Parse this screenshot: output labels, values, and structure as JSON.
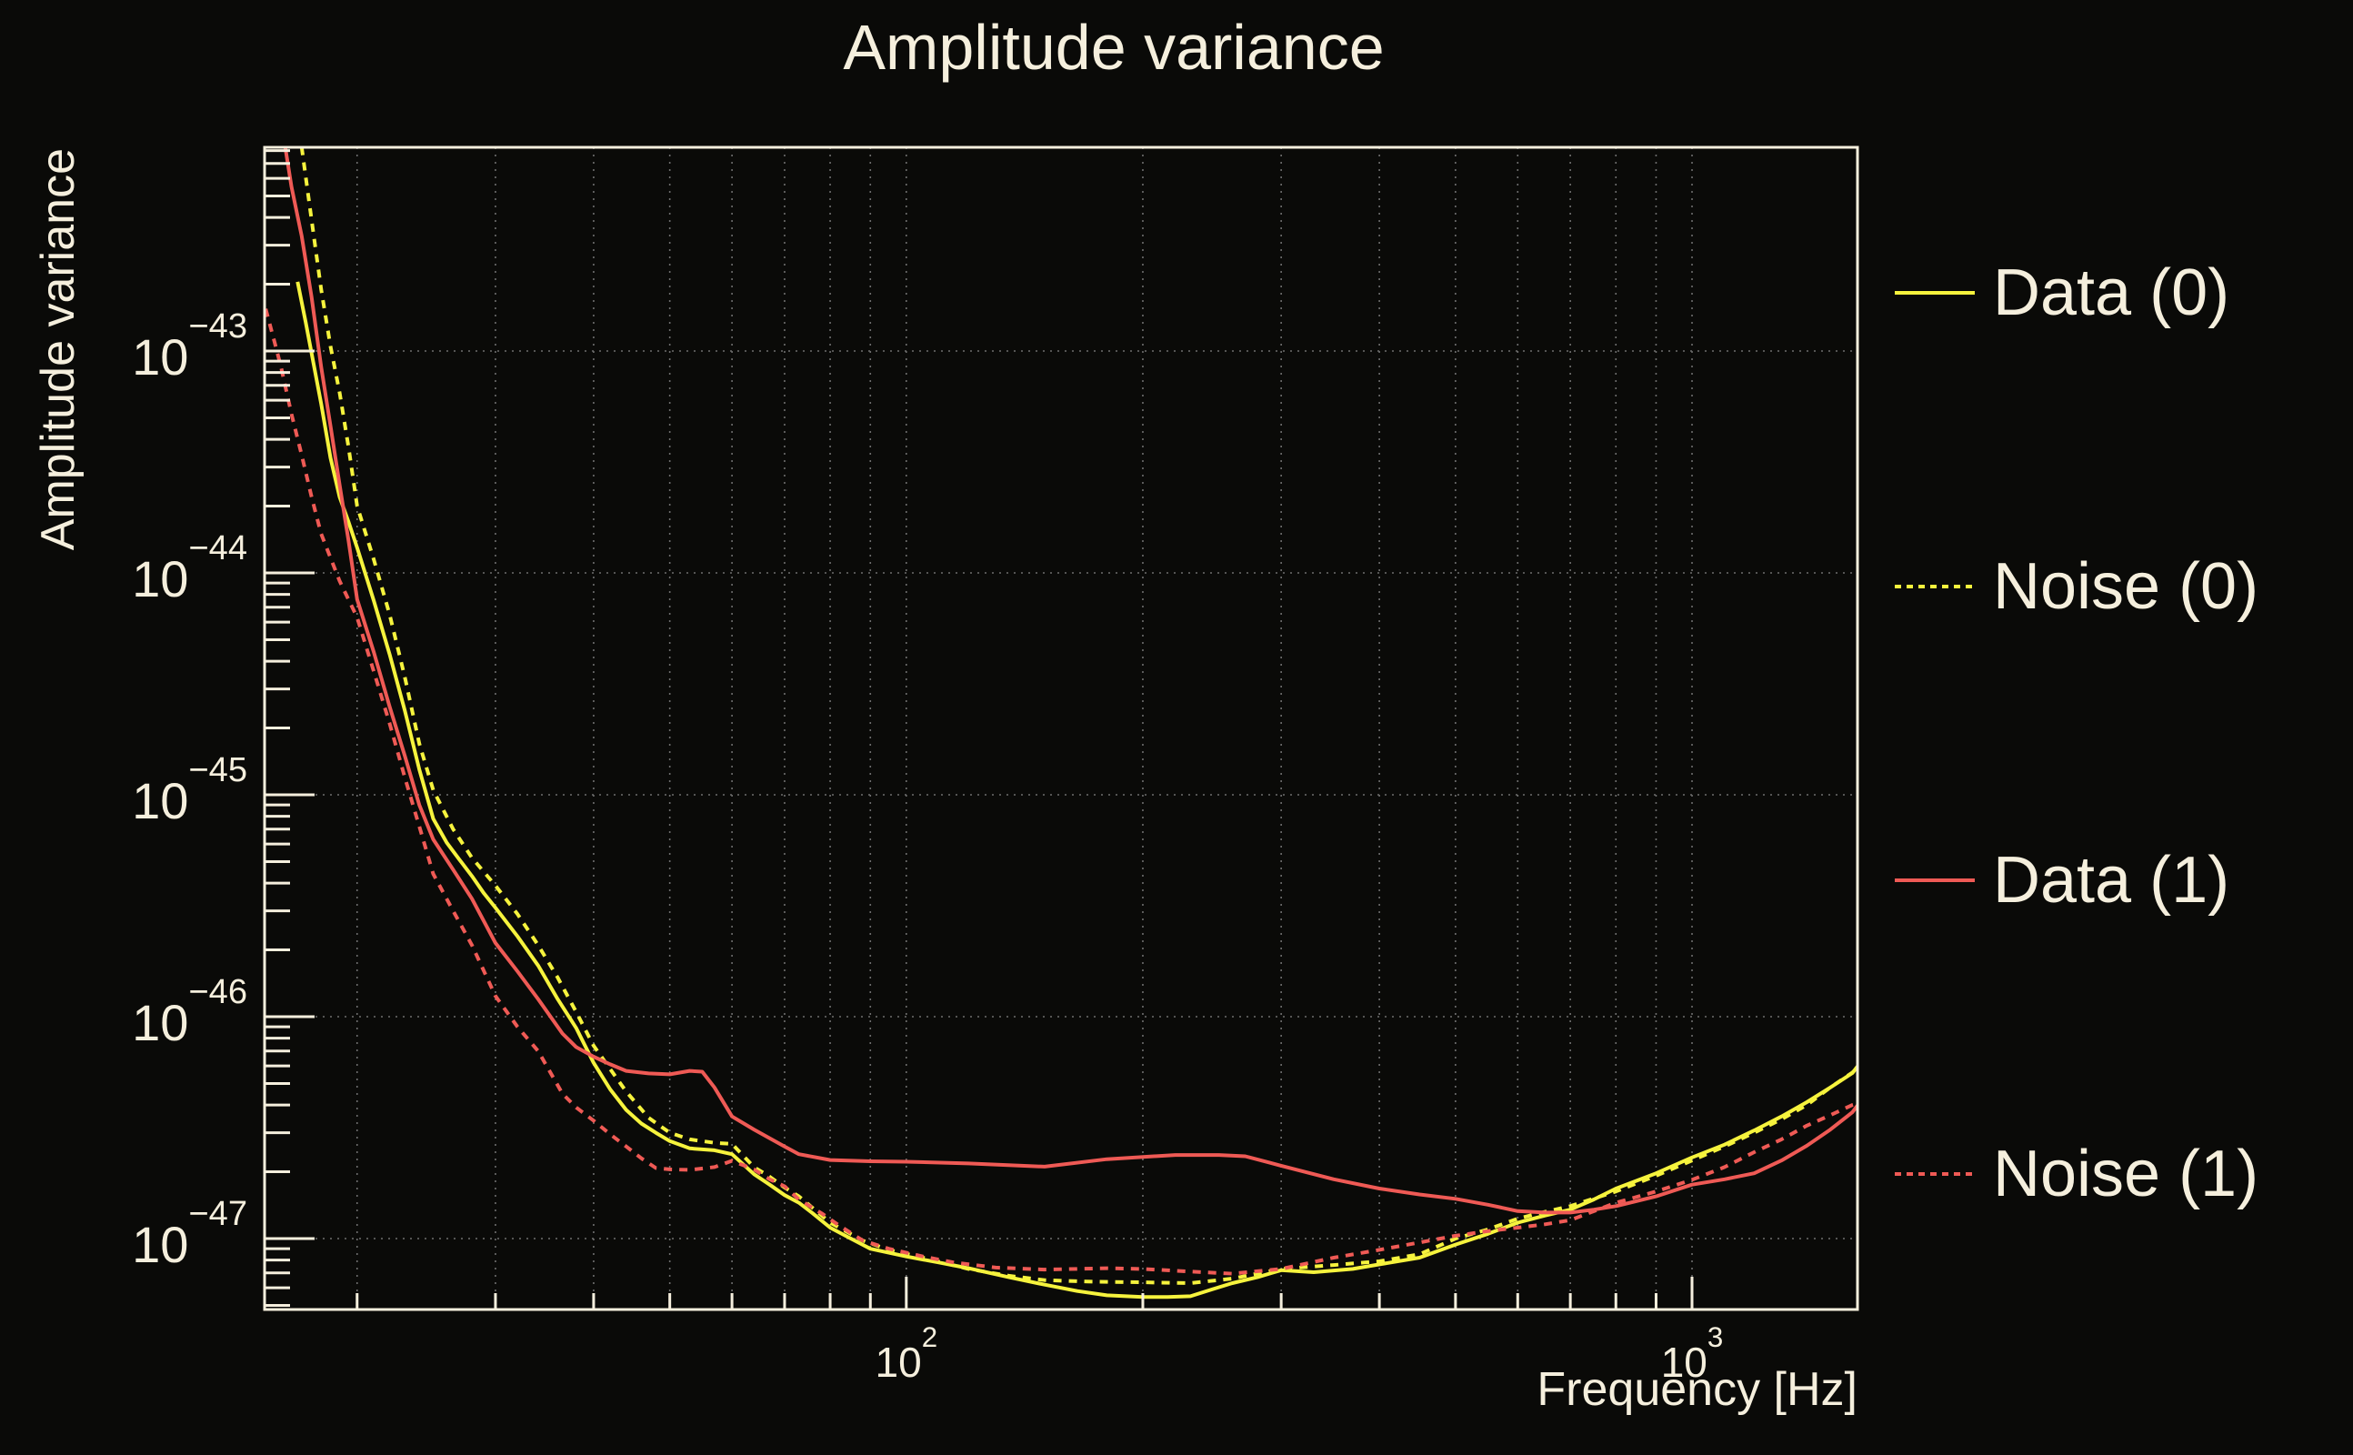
{
  "title": "Amplitude variance",
  "colors": {
    "background": "#0a0a08",
    "frame": "#f5efdd",
    "text": "#f5efdd",
    "grid": "#909090",
    "yellow": "#f6f33d",
    "red": "#ef5a55"
  },
  "chart_data": {
    "type": "line",
    "title": "Amplitude variance",
    "xlabel": "Frequency [Hz]",
    "ylabel": "Amplitude variance",
    "x_scale": "log",
    "y_scale": "log",
    "xlim": [
      15.25,
      1624
    ],
    "ylim": [
      4.79e-48,
      8.28e-43
    ],
    "grid": true,
    "legend_position": "right-outside",
    "x_axis": {
      "tick_base": "10",
      "labeled_exponents": [
        2,
        3
      ],
      "minor_decade_range": [
        1,
        3
      ]
    },
    "y_axis": {
      "tick_base": "10",
      "labeled_exponents": [
        -43,
        -44,
        -45,
        -46,
        -47
      ],
      "minor_decade_range": [
        -48,
        -42
      ]
    },
    "series": [
      {
        "name": "Data (0)",
        "color": "#f6f33d",
        "style": "solid",
        "points": [
          [
            16.8,
            2.05e-43
          ],
          [
            17.2,
            1.35e-43
          ],
          [
            17.6,
            8.8e-44
          ],
          [
            18,
            5.8e-44
          ],
          [
            18.5,
            3.3e-44
          ],
          [
            19,
            2.2e-44
          ],
          [
            19.5,
            1.7e-44
          ],
          [
            20,
            1.3e-44
          ],
          [
            21,
            7.5e-45
          ],
          [
            22,
            4.3e-45
          ],
          [
            23,
            2.4e-45
          ],
          [
            24,
            1.3e-45
          ],
          [
            25,
            7.8e-46
          ],
          [
            26,
            6.1e-46
          ],
          [
            27,
            5.1e-46
          ],
          [
            28,
            4.3e-46
          ],
          [
            29,
            3.6e-46
          ],
          [
            30,
            3.1e-46
          ],
          [
            32,
            2.3e-46
          ],
          [
            34,
            1.7e-46
          ],
          [
            36,
            1.2e-46
          ],
          [
            38,
            8.9e-47
          ],
          [
            40,
            6.2e-47
          ],
          [
            42,
            4.7e-47
          ],
          [
            44,
            3.8e-47
          ],
          [
            46,
            3.3e-47
          ],
          [
            48,
            3e-47
          ],
          [
            50,
            2.75e-47
          ],
          [
            53,
            2.55e-47
          ],
          [
            57,
            2.5e-47
          ],
          [
            60,
            2.4e-47
          ],
          [
            64,
            1.95e-47
          ],
          [
            67,
            1.75e-47
          ],
          [
            70,
            1.57e-47
          ],
          [
            73,
            1.45e-47
          ],
          [
            76,
            1.3e-47
          ],
          [
            80,
            1.12e-47
          ],
          [
            85,
            1e-47
          ],
          [
            90,
            9e-48
          ],
          [
            100,
            8.3e-48
          ],
          [
            110,
            7.8e-48
          ],
          [
            120,
            7.35e-48
          ],
          [
            135,
            6.7e-48
          ],
          [
            150,
            6.2e-48
          ],
          [
            165,
            5.8e-48
          ],
          [
            180,
            5.55e-48
          ],
          [
            200,
            5.45e-48
          ],
          [
            215,
            5.45e-48
          ],
          [
            230,
            5.5e-48
          ],
          [
            245,
            5.9e-48
          ],
          [
            260,
            6.3e-48
          ],
          [
            280,
            6.7e-48
          ],
          [
            300,
            7.2e-48
          ],
          [
            330,
            7.05e-48
          ],
          [
            370,
            7.3e-48
          ],
          [
            400,
            7.65e-48
          ],
          [
            450,
            8.2e-48
          ],
          [
            500,
            9.4e-48
          ],
          [
            550,
            1.05e-47
          ],
          [
            600,
            1.18e-47
          ],
          [
            650,
            1.27e-47
          ],
          [
            700,
            1.35e-47
          ],
          [
            750,
            1.5e-47
          ],
          [
            800,
            1.68e-47
          ],
          [
            900,
            1.97e-47
          ],
          [
            1000,
            2.32e-47
          ],
          [
            1100,
            2.65e-47
          ],
          [
            1200,
            3.07e-47
          ],
          [
            1300,
            3.55e-47
          ],
          [
            1400,
            4.12e-47
          ],
          [
            1500,
            4.8e-47
          ],
          [
            1600,
            5.57e-47
          ],
          [
            1660,
            6.6e-47
          ]
        ]
      },
      {
        "name": "Noise (0)",
        "color": "#f6f33d",
        "style": "dashed",
        "points": [
          [
            17,
            8.3e-43
          ],
          [
            17.5,
            3.9e-43
          ],
          [
            18,
            1.9e-43
          ],
          [
            18.5,
            1.05e-43
          ],
          [
            19,
            6.5e-44
          ],
          [
            19.5,
            3.7e-44
          ],
          [
            20,
            2e-44
          ],
          [
            21,
            1.15e-44
          ],
          [
            22,
            6.5e-45
          ],
          [
            23,
            3.4e-45
          ],
          [
            24,
            1.7e-45
          ],
          [
            25,
            1.05e-45
          ],
          [
            26.5,
            7e-46
          ],
          [
            28,
            5.2e-46
          ],
          [
            30,
            3.9e-46
          ],
          [
            32,
            2.9e-46
          ],
          [
            34,
            2.1e-46
          ],
          [
            36,
            1.5e-46
          ],
          [
            38,
            1.05e-46
          ],
          [
            40,
            7.4e-47
          ],
          [
            42,
            5.8e-47
          ],
          [
            44,
            4.6e-47
          ],
          [
            47,
            3.5e-47
          ],
          [
            50,
            3e-47
          ],
          [
            53,
            2.8e-47
          ],
          [
            57,
            2.7e-47
          ],
          [
            60,
            2.67e-47
          ],
          [
            64,
            2.1e-47
          ],
          [
            67,
            1.9e-47
          ],
          [
            70,
            1.7e-47
          ],
          [
            73,
            1.55e-47
          ],
          [
            80,
            1.18e-47
          ],
          [
            88,
            9.8e-48
          ],
          [
            95,
            8.9e-48
          ],
          [
            105,
            8.2e-48
          ],
          [
            120,
            7.3e-48
          ],
          [
            135,
            6.8e-48
          ],
          [
            150,
            6.5e-48
          ],
          [
            170,
            6.4e-48
          ],
          [
            200,
            6.35e-48
          ],
          [
            230,
            6.3e-48
          ],
          [
            260,
            6.6e-48
          ],
          [
            300,
            7.3e-48
          ],
          [
            350,
            7.6e-48
          ],
          [
            400,
            7.9e-48
          ],
          [
            450,
            8.5e-48
          ],
          [
            500,
            1e-47
          ],
          [
            550,
            1.1e-47
          ],
          [
            600,
            1.23e-47
          ],
          [
            650,
            1.32e-47
          ],
          [
            700,
            1.4e-47
          ],
          [
            800,
            1.63e-47
          ],
          [
            900,
            1.92e-47
          ],
          [
            1000,
            2.25e-47
          ],
          [
            1100,
            2.6e-47
          ],
          [
            1200,
            3e-47
          ],
          [
            1300,
            3.45e-47
          ],
          [
            1400,
            4e-47
          ],
          [
            1500,
            4.8e-47
          ],
          [
            1600,
            5.6e-47
          ],
          [
            1660,
            6.3e-47
          ]
        ]
      },
      {
        "name": "Data (1)",
        "color": "#ef5a55",
        "style": "solid",
        "points": [
          [
            16.2,
            8.3e-43
          ],
          [
            16.5,
            5.5e-43
          ],
          [
            17,
            3.3e-43
          ],
          [
            17.5,
            1.75e-43
          ],
          [
            18,
            8.5e-44
          ],
          [
            18.5,
            4.6e-44
          ],
          [
            19,
            2.5e-44
          ],
          [
            19.5,
            1.4e-44
          ],
          [
            20,
            7.6e-45
          ],
          [
            21,
            4.4e-45
          ],
          [
            22,
            2.5e-45
          ],
          [
            23,
            1.5e-45
          ],
          [
            24,
            9e-46
          ],
          [
            25,
            6.3e-46
          ],
          [
            26.5,
            4.6e-46
          ],
          [
            28,
            3.4e-46
          ],
          [
            30,
            2.15e-46
          ],
          [
            32,
            1.6e-46
          ],
          [
            34,
            1.2e-46
          ],
          [
            36.5,
            8.4e-47
          ],
          [
            38,
            7.3e-47
          ],
          [
            40,
            6.6e-47
          ],
          [
            42,
            6.1e-47
          ],
          [
            44,
            5.7e-47
          ],
          [
            47,
            5.55e-47
          ],
          [
            50,
            5.5e-47
          ],
          [
            53,
            5.7e-47
          ],
          [
            55,
            5.65e-47
          ],
          [
            57,
            4.8e-47
          ],
          [
            60,
            3.55e-47
          ],
          [
            64,
            3.1e-47
          ],
          [
            70,
            2.6e-47
          ],
          [
            73,
            2.4e-47
          ],
          [
            80,
            2.26e-47
          ],
          [
            90,
            2.23e-47
          ],
          [
            100,
            2.22e-47
          ],
          [
            120,
            2.18e-47
          ],
          [
            150,
            2.11e-47
          ],
          [
            180,
            2.28e-47
          ],
          [
            220,
            2.38e-47
          ],
          [
            250,
            2.38e-47
          ],
          [
            270,
            2.35e-47
          ],
          [
            300,
            2.13e-47
          ],
          [
            350,
            1.85e-47
          ],
          [
            400,
            1.68e-47
          ],
          [
            450,
            1.58e-47
          ],
          [
            500,
            1.51e-47
          ],
          [
            550,
            1.42e-47
          ],
          [
            600,
            1.33e-47
          ],
          [
            650,
            1.31e-47
          ],
          [
            700,
            1.31e-47
          ],
          [
            750,
            1.35e-47
          ],
          [
            800,
            1.4e-47
          ],
          [
            900,
            1.55e-47
          ],
          [
            1000,
            1.75e-47
          ],
          [
            1100,
            1.85e-47
          ],
          [
            1200,
            1.97e-47
          ],
          [
            1300,
            2.25e-47
          ],
          [
            1400,
            2.62e-47
          ],
          [
            1500,
            3.1e-47
          ],
          [
            1600,
            3.71e-47
          ],
          [
            1660,
            4.41e-47
          ]
        ]
      },
      {
        "name": "Noise (1)",
        "color": "#ef5a55",
        "style": "dashed",
        "points": [
          [
            15.3,
            1.55e-43
          ],
          [
            15.7,
            1.1e-43
          ],
          [
            16,
            8.5e-44
          ],
          [
            16.5,
            5.2e-44
          ],
          [
            17,
            3.4e-44
          ],
          [
            17.5,
            2.2e-44
          ],
          [
            18,
            1.5e-44
          ],
          [
            19,
            9.2e-45
          ],
          [
            20,
            6.3e-45
          ],
          [
            21,
            3.6e-45
          ],
          [
            22,
            2.1e-45
          ],
          [
            23,
            1.2e-45
          ],
          [
            24,
            7.2e-46
          ],
          [
            25,
            4.4e-46
          ],
          [
            26.5,
            3e-46
          ],
          [
            28,
            2.1e-46
          ],
          [
            30,
            1.24e-46
          ],
          [
            32,
            9e-47
          ],
          [
            34,
            7e-47
          ],
          [
            36.5,
            4.5e-47
          ],
          [
            38,
            3.9e-47
          ],
          [
            40,
            3.4e-47
          ],
          [
            42,
            2.95e-47
          ],
          [
            44,
            2.6e-47
          ],
          [
            46,
            2.3e-47
          ],
          [
            48,
            2.08e-47
          ],
          [
            50,
            2.05e-47
          ],
          [
            53,
            2.04e-47
          ],
          [
            57,
            2.1e-47
          ],
          [
            60,
            2.24e-47
          ],
          [
            64,
            2.05e-47
          ],
          [
            67,
            1.85e-47
          ],
          [
            70,
            1.72e-47
          ],
          [
            73,
            1.5e-47
          ],
          [
            78,
            1.3e-47
          ],
          [
            82,
            1.15e-47
          ],
          [
            88,
            9.8e-48
          ],
          [
            95,
            9e-48
          ],
          [
            105,
            8.3e-48
          ],
          [
            115,
            7.8e-48
          ],
          [
            130,
            7.4e-48
          ],
          [
            150,
            7.25e-48
          ],
          [
            180,
            7.35e-48
          ],
          [
            200,
            7.3e-48
          ],
          [
            230,
            7.1e-48
          ],
          [
            260,
            6.95e-48
          ],
          [
            300,
            7.3e-48
          ],
          [
            350,
            8.2e-48
          ],
          [
            400,
            8.9e-48
          ],
          [
            450,
            9.6e-48
          ],
          [
            500,
            1.03e-47
          ],
          [
            550,
            1.08e-47
          ],
          [
            600,
            1.12e-47
          ],
          [
            650,
            1.16e-47
          ],
          [
            700,
            1.21e-47
          ],
          [
            800,
            1.45e-47
          ],
          [
            900,
            1.63e-47
          ],
          [
            1000,
            1.84e-47
          ],
          [
            1100,
            2.1e-47
          ],
          [
            1200,
            2.45e-47
          ],
          [
            1300,
            2.8e-47
          ],
          [
            1400,
            3.23e-47
          ],
          [
            1500,
            3.6e-47
          ],
          [
            1600,
            4e-47
          ],
          [
            1660,
            4.15e-47
          ]
        ]
      }
    ]
  }
}
